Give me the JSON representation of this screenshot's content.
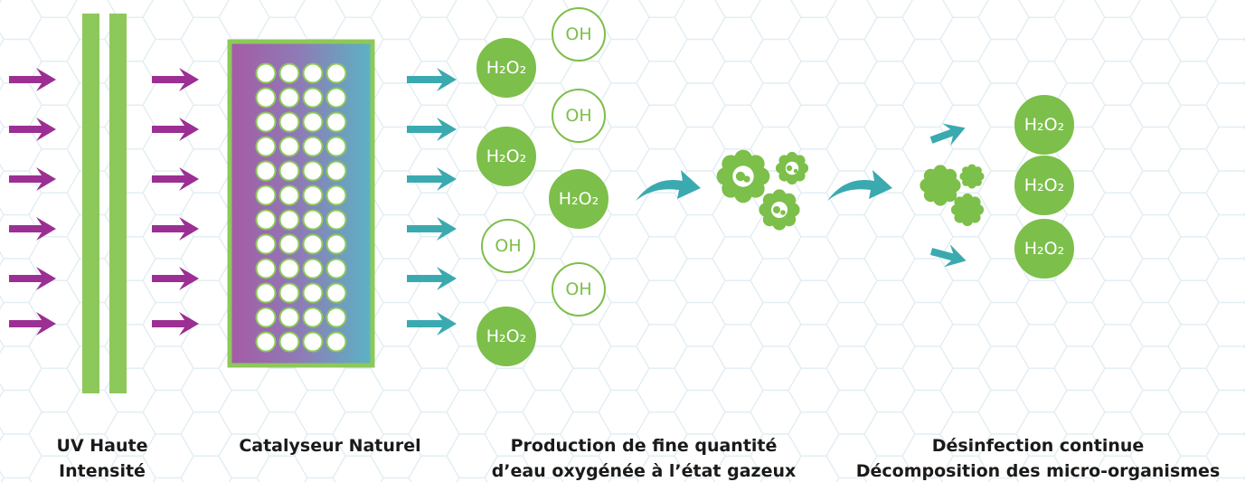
{
  "labels": [
    [
      "UV Haute",
      "Intensité"
    ],
    [
      "Catalyseur Naturel"
    ],
    [
      "Production de fine quantité",
      "d’eau oxygénée à l’état gazeux"
    ],
    [
      "Désinfection continue",
      "Décomposition des micro-organismes"
    ]
  ],
  "molecules": [
    "OH",
    "H₂O₂",
    "OH",
    "H₂O₂",
    "H₂O₂",
    "OH",
    "OH",
    "H₂O₂",
    "H₂O₂",
    "H₂O₂",
    "H₂O₂"
  ]
}
